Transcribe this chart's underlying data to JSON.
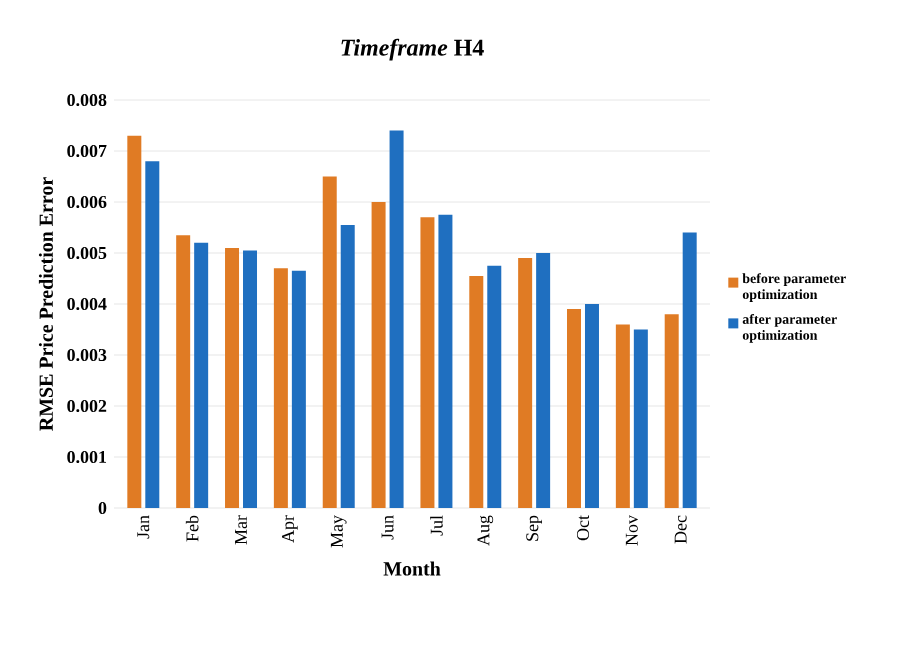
{
  "chart_data": {
    "type": "bar",
    "title": "*Timeframe* H4",
    "xlabel": "Month",
    "ylabel": "RMSE Price Prediction Error",
    "categories": [
      "Jan",
      "Feb",
      "Mar",
      "Apr",
      "May",
      "Jun",
      "Jul",
      "Aug",
      "Sep",
      "Oct",
      "Nov",
      "Dec"
    ],
    "series": [
      {
        "name": "before parameter optimization",
        "color": "#e07b24",
        "values": [
          0.0073,
          0.00535,
          0.0051,
          0.0047,
          0.0065,
          0.006,
          0.0057,
          0.00455,
          0.0049,
          0.0039,
          0.0036,
          0.0038
        ]
      },
      {
        "name": "after parameter optimization",
        "color": "#1f6fc0",
        "values": [
          0.0068,
          0.0052,
          0.00505,
          0.00465,
          0.00555,
          0.0074,
          0.00575,
          0.00475,
          0.005,
          0.004,
          0.0035,
          0.0054
        ]
      }
    ],
    "ylim": [
      0,
      0.008
    ],
    "yticks": [
      0,
      0.001,
      0.002,
      0.003,
      0.004,
      0.005,
      0.006,
      0.007,
      0.008
    ],
    "grid": "y",
    "legend": "right"
  }
}
